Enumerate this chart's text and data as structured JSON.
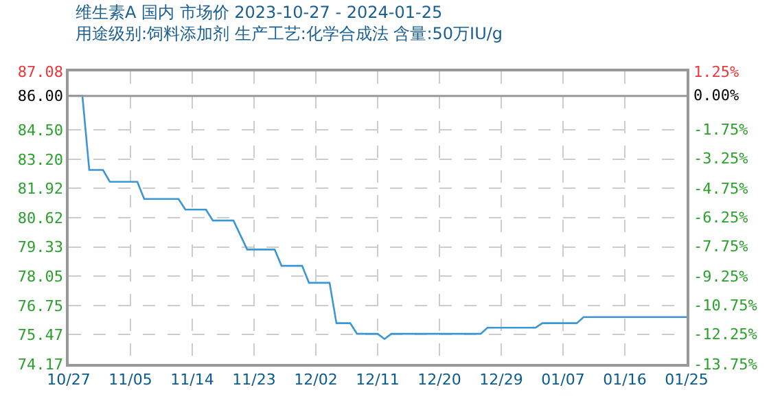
{
  "chart_data": {
    "type": "line",
    "title": "维生素A 国内 市场价 2023-10-27 - 2024-01-25",
    "subtitle": "用途级别:饲料添加剂 生产工艺:化学合成法 含量:50万IU/g",
    "series": [
      {
        "color": "#3a97d3",
        "x": [
          "2023-10-27",
          "2023-10-29",
          "2023-10-30",
          "2023-11-01",
          "2023-11-02",
          "2023-11-06",
          "2023-11-07",
          "2023-11-12",
          "2023-11-13",
          "2023-11-16",
          "2023-11-17",
          "2023-11-20",
          "2023-11-22",
          "2023-11-26",
          "2023-11-27",
          "2023-11-30",
          "2023-12-01",
          "2023-12-04",
          "2023-12-05",
          "2023-12-07",
          "2023-12-08",
          "2023-12-11",
          "2023-12-12",
          "2023-12-13",
          "2023-12-26",
          "2023-12-27",
          "2024-01-03",
          "2024-01-04",
          "2024-01-09",
          "2024-01-10",
          "2024-01-25"
        ],
        "values": [
          86.0,
          86.0,
          82.73,
          82.73,
          82.21,
          82.21,
          81.45,
          81.45,
          80.98,
          80.98,
          80.5,
          80.5,
          79.22,
          79.22,
          78.5,
          78.5,
          77.75,
          77.75,
          75.97,
          75.97,
          75.5,
          75.5,
          75.27,
          75.5,
          75.5,
          75.77,
          75.77,
          75.97,
          75.97,
          76.24,
          76.24
        ]
      }
    ],
    "xlim": [
      "2023-10-27",
      "2024-01-25"
    ],
    "xticks": [
      {
        "value": "2023-10-27",
        "label": "10/27"
      },
      {
        "value": "2023-11-05",
        "label": "11/05"
      },
      {
        "value": "2023-11-14",
        "label": "11/14"
      },
      {
        "value": "2023-11-23",
        "label": "11/23"
      },
      {
        "value": "2023-12-02",
        "label": "12/02"
      },
      {
        "value": "2023-12-11",
        "label": "12/11"
      },
      {
        "value": "2023-12-20",
        "label": "12/20"
      },
      {
        "value": "2023-12-29",
        "label": "12/29"
      },
      {
        "value": "2024-01-07",
        "label": "01/07"
      },
      {
        "value": "2024-01-16",
        "label": "01/16"
      },
      {
        "value": "2024-01-25",
        "label": "01/25"
      }
    ],
    "ylim": [
      74.17,
      87.08
    ],
    "yticks": [
      87.08,
      {
        "value": 86.0,
        "label": "86.00"
      },
      {
        "value": 84.5,
        "label": "84.50"
      },
      {
        "value": 83.2,
        "label": "83.20"
      },
      81.92,
      80.62,
      79.33,
      78.05,
      76.75,
      75.47,
      74.17
    ],
    "y2lim": [
      -13.75,
      1.25
    ],
    "y2ticks": [
      {
        "value": 1.25,
        "label": "1.25%"
      },
      {
        "value": 0,
        "label": "0.00%"
      },
      {
        "value": -1.75,
        "label": "-1.75%"
      },
      {
        "value": -3.25,
        "label": "-3.25%"
      },
      {
        "value": -4.75,
        "label": "-4.75%"
      },
      {
        "value": -6.25,
        "label": "-6.25%"
      },
      {
        "value": -7.75,
        "label": "-7.75%"
      },
      {
        "value": -9.25,
        "label": "-9.25%"
      },
      {
        "value": -10.75,
        "label": "-10.75%"
      },
      {
        "value": -12.25,
        "label": "-12.25%"
      },
      {
        "value": -13.75,
        "label": "-13.75%"
      }
    ],
    "ref_lines": [
      {
        "axis": "y",
        "value": 86.0,
        "color": "#999999"
      }
    ],
    "grid": true,
    "marker": "none",
    "line_style": "solid"
  }
}
